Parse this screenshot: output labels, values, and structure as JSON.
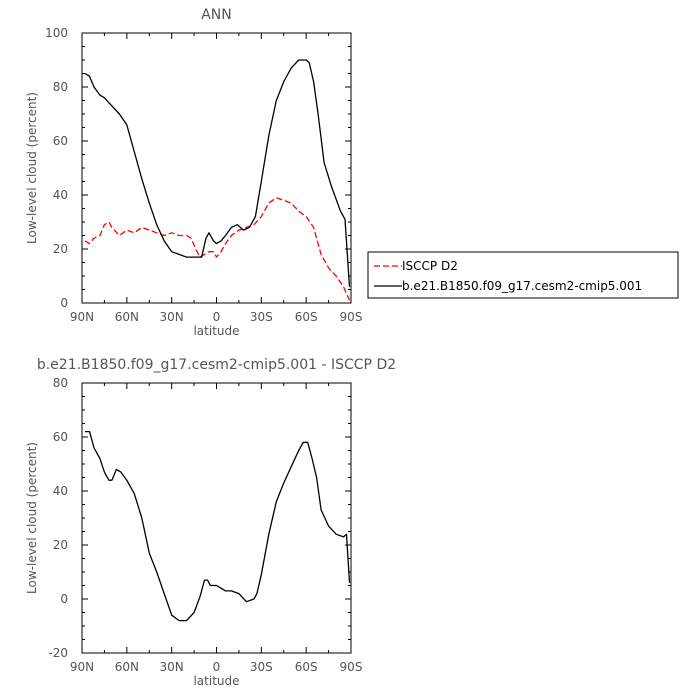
{
  "chart_data": [
    {
      "type": "line",
      "title": "ANN",
      "xlabel": "latitude",
      "ylabel": "Low-level cloud (percent)",
      "xlim": [
        90,
        -90
      ],
      "ylim": [
        0,
        100
      ],
      "xticks": [
        90,
        60,
        30,
        0,
        -30,
        -60,
        -90
      ],
      "xtick_labels": [
        "90N",
        "60N",
        "30N",
        "0",
        "30S",
        "60S",
        "90S"
      ],
      "yticks": [
        0,
        20,
        40,
        60,
        80,
        100
      ],
      "ytick_labels": [
        "0",
        "20",
        "40",
        "60",
        "80",
        "100"
      ],
      "legend": {
        "placement": "right"
      },
      "series": [
        {
          "name": "ISCCP D2",
          "color": "#ff0000",
          "style": "dashed",
          "x": [
            88,
            85,
            82,
            78,
            75,
            72,
            70,
            65,
            60,
            55,
            50,
            45,
            40,
            35,
            30,
            25,
            20,
            17,
            14,
            11,
            8,
            5,
            2,
            0,
            -3,
            -6,
            -10,
            -15,
            -20,
            -25,
            -30,
            -35,
            -40,
            -45,
            -50,
            -55,
            -60,
            -65,
            -70,
            -75,
            -80,
            -85,
            -89
          ],
          "y": [
            23,
            22,
            24,
            25,
            29,
            30,
            28,
            25,
            27,
            26,
            28,
            27,
            26,
            25,
            26,
            25,
            25,
            24,
            20,
            17,
            18,
            19,
            19,
            17,
            19,
            22,
            25,
            27,
            28,
            29,
            32,
            37,
            39,
            38,
            37,
            34,
            32,
            28,
            18,
            13,
            10,
            6,
            1
          ]
        },
        {
          "name": "b.e21.B1850.f09_g17.cesm2-cmip5.001",
          "color": "#000000",
          "style": "solid",
          "x": [
            88,
            85,
            82,
            78,
            75,
            70,
            65,
            60,
            55,
            50,
            45,
            40,
            35,
            30,
            25,
            20,
            15,
            10,
            7,
            5,
            2,
            0,
            -3,
            -6,
            -10,
            -14,
            -18,
            -22,
            -26,
            -30,
            -35,
            -40,
            -45,
            -50,
            -55,
            -60,
            -62,
            -65,
            -68,
            -72,
            -77,
            -83,
            -86,
            -89
          ],
          "y": [
            85,
            84,
            80,
            77,
            76,
            73,
            70,
            66,
            56,
            46,
            37,
            29,
            23,
            19,
            18,
            17,
            17,
            17,
            24,
            26,
            23,
            22,
            23,
            25,
            28,
            29,
            27,
            28,
            32,
            45,
            62,
            75,
            82,
            87,
            90,
            90,
            89,
            82,
            70,
            52,
            43,
            34,
            31,
            6
          ]
        }
      ]
    },
    {
      "type": "line",
      "title": "b.e21.B1850.f09_g17.cesm2-cmip5.001  -  ISCCP D2",
      "xlabel": "latitude",
      "ylabel": "Low-level cloud (percent)",
      "xlim": [
        90,
        -90
      ],
      "ylim": [
        -20,
        80
      ],
      "xticks": [
        90,
        60,
        30,
        0,
        -30,
        -60,
        -90
      ],
      "xtick_labels": [
        "90N",
        "60N",
        "30N",
        "0",
        "30S",
        "60S",
        "90S"
      ],
      "yticks": [
        -20,
        0,
        20,
        40,
        60,
        80
      ],
      "ytick_labels": [
        "-20",
        "0",
        "20",
        "40",
        "60",
        "80"
      ],
      "series": [
        {
          "color": "#000000",
          "style": "solid",
          "x": [
            88,
            85,
            82,
            78,
            75,
            72,
            70,
            67,
            64,
            60,
            55,
            50,
            45,
            40,
            35,
            30,
            25,
            20,
            15,
            11,
            8,
            6,
            4,
            2,
            0,
            -3,
            -6,
            -10,
            -15,
            -20,
            -25,
            -27,
            -30,
            -35,
            -40,
            -45,
            -50,
            -55,
            -58,
            -61,
            -64,
            -67,
            -70,
            -75,
            -80,
            -85,
            -87,
            -89
          ],
          "y": [
            62,
            62,
            56,
            52,
            47,
            44,
            44,
            48,
            47,
            44,
            39,
            30,
            17,
            10,
            2,
            -6,
            -8,
            -8,
            -5,
            1,
            7,
            7,
            5,
            5,
            5,
            4,
            3,
            3,
            2,
            -1,
            0,
            2,
            9,
            24,
            36,
            43,
            49,
            55,
            58,
            58,
            52,
            45,
            33,
            27,
            24,
            23,
            24,
            6
          ]
        }
      ]
    }
  ]
}
